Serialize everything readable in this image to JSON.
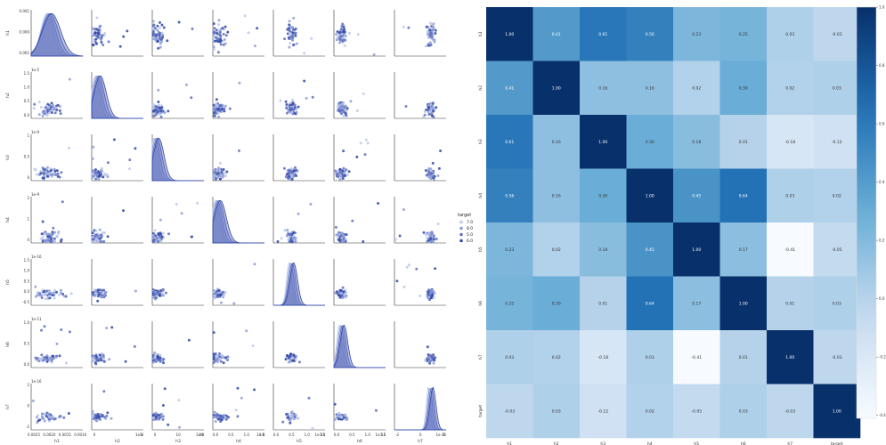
{
  "chart_data": [
    {
      "type": "scatter",
      "subtype": "pairplot",
      "variables": [
        "h1",
        "h2",
        "h3",
        "h4",
        "h5",
        "h6",
        "h7"
      ],
      "diag_kind": "kde",
      "hue": {
        "title": "target",
        "levels": [
          "7.0",
          "8.0",
          "5.0",
          "6.0"
        ],
        "colors": [
          "#bcc8ea",
          "#8d9cd6",
          "#5e6fc0",
          "#3349a8"
        ]
      },
      "row_offset_labels": [
        "",
        "1e-5",
        "1e-9",
        "1e-9",
        "1e-16",
        "1e-11",
        "1e-16"
      ],
      "y_ticks": [
        [
          "0.001",
          "0.000",
          "0.001"
        ],
        [
          "1.5",
          "1.0",
          "0.5",
          "0.0"
        ],
        [
          "1",
          "0.5",
          "0"
        ],
        [
          "2",
          "1",
          "0"
        ],
        [
          "1.5",
          "1.0",
          "0.5",
          "0.0",
          "-0.5"
        ],
        [
          "1.0",
          "0.5",
          "0.0"
        ],
        [
          "2",
          "0",
          "-2"
        ]
      ],
      "x_ticks": [
        [
          "0.0025",
          "0.0020",
          "0.0015",
          "0.0010"
        ],
        [
          "0",
          "1"
        ],
        [
          "0",
          "10",
          "20"
        ],
        [
          "0.0",
          "0.5",
          "1.0",
          "1.5"
        ],
        [
          "0.0",
          "0.5",
          "1.0",
          "1.5"
        ],
        [
          "0.0",
          "0.5",
          "1.0",
          "1.5"
        ],
        [
          "-2",
          "0",
          "2"
        ]
      ],
      "x_offset_labels": [
        "",
        "1e-8",
        "1e-8",
        "1e-8",
        "1e-16",
        "1e-11",
        "1e-16"
      ]
    },
    {
      "type": "heatmap",
      "title": "",
      "rows": [
        "h1",
        "h2",
        "h3",
        "h4",
        "h5",
        "h6",
        "h7",
        "target"
      ],
      "columns": [
        "h1",
        "h2",
        "h3",
        "h4",
        "h5",
        "h6",
        "h7",
        "target"
      ],
      "values": [
        [
          1.0,
          0.41,
          0.61,
          0.56,
          0.23,
          0.25,
          0.03,
          -0.03
        ],
        [
          0.41,
          1.0,
          0.16,
          0.16,
          0.02,
          0.3,
          0.02,
          0.03
        ],
        [
          0.61,
          0.16,
          1.0,
          0.3,
          0.18,
          0.01,
          -0.18,
          -0.12
        ],
        [
          0.56,
          0.16,
          0.3,
          1.0,
          0.45,
          0.64,
          0.03,
          0.02
        ],
        [
          0.23,
          0.02,
          0.18,
          0.45,
          1.0,
          0.17,
          -0.41,
          -0.05
        ],
        [
          0.25,
          0.3,
          0.01,
          0.64,
          0.17,
          1.0,
          0.01,
          0.03
        ],
        [
          0.03,
          0.02,
          -0.18,
          0.03,
          -0.41,
          0.01,
          1.0,
          -0.03
        ],
        [
          -0.03,
          0.03,
          -0.12,
          0.02,
          -0.05,
          0.03,
          -0.03,
          1.0
        ]
      ],
      "vmin": -0.41,
      "vmax": 1.0,
      "colormap": "Blues",
      "colorbar_ticks": [
        "1.0",
        "0.8",
        "0.6",
        "0.4",
        "0.2",
        "0.0",
        "-0.2",
        "-0.4"
      ]
    }
  ]
}
